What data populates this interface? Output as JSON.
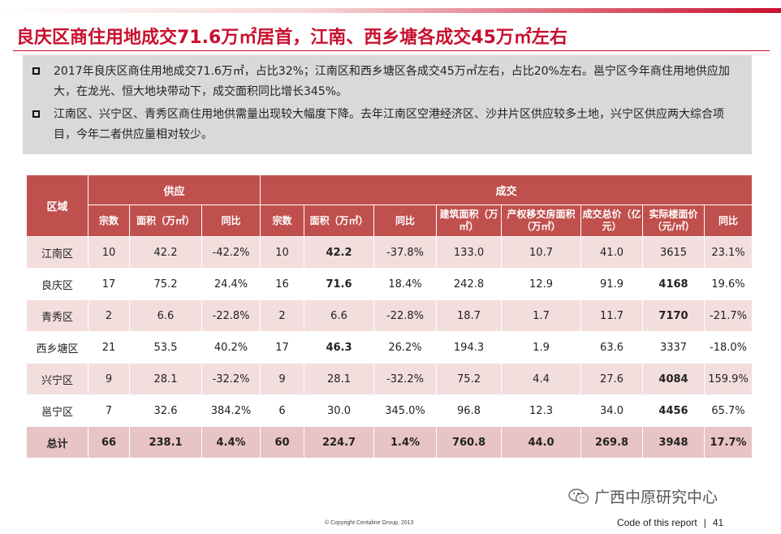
{
  "title": "良庆区商住用地成交71.6万㎡居首，江南、西乡塘各成交45万㎡左右",
  "bullets": [
    "2017年良庆区商住用地成交71.6万㎡，占比32%；江南区和西乡塘区各成交45万㎡左右，占比20%左右。邕宁区今年商住用地供应加大，在龙光、恒大地块带动下，成交面积同比增长345%。",
    "江南区、兴宁区、青秀区商住用地供需量出现较大幅度下降。去年江南区空港经济区、沙井片区供应较多土地，兴宁区供应两大综合项目，今年二者供应量相对较少。"
  ],
  "table": {
    "region_header": "区域",
    "group_supply": "供应",
    "group_deal": "成交",
    "sub_headers": [
      "宗数",
      "面积（万㎡）",
      "同比",
      "宗数",
      "面积（万㎡）",
      "同比",
      "建筑面积（万㎡）",
      "产权移交房面积（万㎡）",
      "成交总价（亿元）",
      "实际楼面价（元/㎡）",
      "同比"
    ],
    "rows": [
      [
        "江南区",
        "10",
        "42.2",
        "-42.2%",
        "10",
        "42.2",
        "-37.8%",
        "133.0",
        "10.7",
        "41.0",
        "3615",
        "23.1%"
      ],
      [
        "良庆区",
        "17",
        "75.2",
        "24.4%",
        "16",
        "71.6",
        "18.4%",
        "242.8",
        "12.9",
        "91.9",
        "4168",
        "19.6%"
      ],
      [
        "青秀区",
        "2",
        "6.6",
        "-22.8%",
        "2",
        "6.6",
        "-22.8%",
        "18.7",
        "1.7",
        "11.7",
        "7170",
        "-21.7%"
      ],
      [
        "西乡塘区",
        "21",
        "53.5",
        "40.2%",
        "17",
        "46.3",
        "26.2%",
        "194.3",
        "1.9",
        "63.6",
        "3337",
        "-18.0%"
      ],
      [
        "兴宁区",
        "9",
        "28.1",
        "-32.2%",
        "9",
        "28.1",
        "-32.2%",
        "75.2",
        "4.4",
        "27.6",
        "4084",
        "159.9%"
      ],
      [
        "邕宁区",
        "7",
        "32.6",
        "384.2%",
        "6",
        "30.0",
        "345.0%",
        "96.8",
        "12.3",
        "34.0",
        "4456",
        "65.7%"
      ]
    ],
    "total": [
      "总计",
      "66",
      "238.1",
      "4.4%",
      "60",
      "224.7",
      "1.4%",
      "760.8",
      "44.0",
      "269.8",
      "3948",
      "17.7%"
    ]
  },
  "wechat_label": "广西中原研究中心",
  "copyright": "© Copyright  Centaline Group, 2013",
  "footer_code": "Code of this report",
  "page_number": "41",
  "colors": {
    "accent": "#c8102e",
    "header_bg": "#c0504d",
    "row_alt": "#f3dede",
    "total_bg": "#e8c4c4"
  }
}
